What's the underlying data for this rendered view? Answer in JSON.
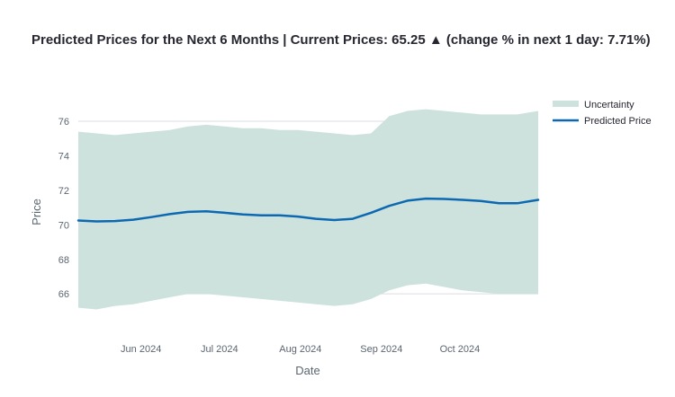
{
  "chart_data": {
    "type": "area",
    "title_prefix": "Predicted Prices for the Next 6 Months | Current Prices: 65.25",
    "title_arrow": "▲",
    "title_suffix": "(change % in next 1 day: 7.71%)",
    "xlabel": "Date",
    "ylabel": "Price",
    "ylim": [
      64.5,
      77.2
    ],
    "yticks": [
      66,
      68,
      70,
      72,
      74,
      76
    ],
    "x_start": "2024-05-08",
    "x_end": "2024-10-31",
    "xticks": [
      {
        "date": "2024-06-01",
        "label": "Jun 2024"
      },
      {
        "date": "2024-07-01",
        "label": "Jul 2024"
      },
      {
        "date": "2024-08-01",
        "label": "Aug 2024"
      },
      {
        "date": "2024-09-01",
        "label": "Sep 2024"
      },
      {
        "date": "2024-10-01",
        "label": "Oct 2024"
      }
    ],
    "grid": true,
    "legend_position": "top-right",
    "series": [
      {
        "name": "Uncertainty",
        "kind": "band",
        "color": "#cde2dd",
        "x": [
          "2024-05-08",
          "2024-05-15",
          "2024-05-22",
          "2024-05-29",
          "2024-06-05",
          "2024-06-12",
          "2024-06-19",
          "2024-06-26",
          "2024-07-03",
          "2024-07-10",
          "2024-07-17",
          "2024-07-24",
          "2024-07-31",
          "2024-08-07",
          "2024-08-14",
          "2024-08-21",
          "2024-08-28",
          "2024-09-04",
          "2024-09-11",
          "2024-09-18",
          "2024-09-25",
          "2024-10-02",
          "2024-10-09",
          "2024-10-16",
          "2024-10-23",
          "2024-10-31"
        ],
        "upper": [
          75.4,
          75.3,
          75.2,
          75.3,
          75.4,
          75.5,
          75.7,
          75.8,
          75.7,
          75.6,
          75.6,
          75.5,
          75.5,
          75.4,
          75.3,
          75.2,
          75.3,
          76.3,
          76.6,
          76.7,
          76.6,
          76.5,
          76.4,
          76.4,
          76.4,
          76.6
        ],
        "lower": [
          65.2,
          65.1,
          65.3,
          65.4,
          65.6,
          65.8,
          66.0,
          66.0,
          65.9,
          65.8,
          65.7,
          65.6,
          65.5,
          65.4,
          65.3,
          65.4,
          65.7,
          66.2,
          66.5,
          66.6,
          66.4,
          66.2,
          66.1,
          66.0,
          66.0,
          66.0
        ]
      },
      {
        "name": "Predicted Price",
        "kind": "line",
        "color": "#0b68b1",
        "x": [
          "2024-05-08",
          "2024-05-15",
          "2024-05-22",
          "2024-05-29",
          "2024-06-05",
          "2024-06-12",
          "2024-06-19",
          "2024-06-26",
          "2024-07-03",
          "2024-07-10",
          "2024-07-17",
          "2024-07-24",
          "2024-07-31",
          "2024-08-07",
          "2024-08-14",
          "2024-08-21",
          "2024-08-28",
          "2024-09-04",
          "2024-09-11",
          "2024-09-18",
          "2024-09-25",
          "2024-10-02",
          "2024-10-09",
          "2024-10-16",
          "2024-10-23",
          "2024-10-31"
        ],
        "values": [
          70.25,
          70.2,
          70.22,
          70.3,
          70.45,
          70.62,
          70.75,
          70.78,
          70.7,
          70.6,
          70.55,
          70.55,
          70.48,
          70.35,
          70.28,
          70.35,
          70.7,
          71.1,
          71.4,
          71.52,
          71.5,
          71.45,
          71.38,
          71.25,
          71.25,
          71.45
        ]
      }
    ]
  }
}
